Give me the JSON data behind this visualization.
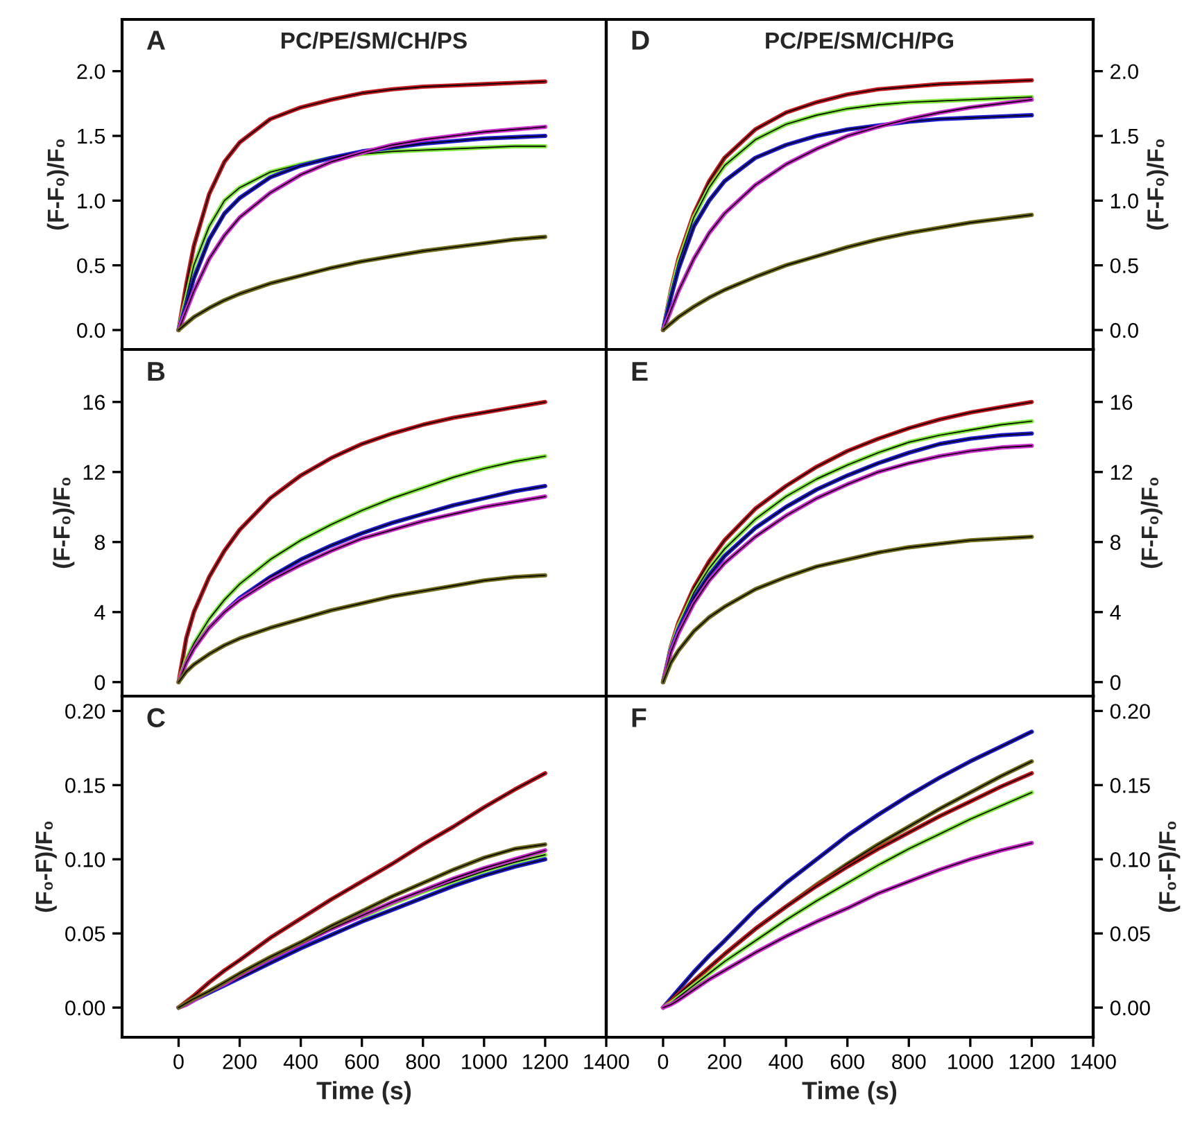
{
  "chart_data": [
    {
      "type": "line",
      "title": "PC/PE/SM/CH/PS",
      "ylabel": "(F-F₀)/F₀",
      "annotations": [
        "A"
      ],
      "tick_labels": "y",
      "x": [
        0,
        25,
        50,
        100,
        150,
        200,
        300,
        400,
        500,
        600,
        700,
        800,
        900,
        1000,
        1100,
        1200
      ],
      "xlim": [
        -185,
        1400
      ],
      "xticks": [
        0,
        200,
        400,
        600,
        800,
        1000,
        1200,
        1400
      ],
      "ylim": [
        -0.15,
        2.4
      ],
      "yticks": [
        {
          "value": 0,
          "label": "0.0"
        },
        0.5,
        {
          "value": 1,
          "label": "1.0"
        },
        1.5,
        {
          "value": 2,
          "label": "2.0"
        }
      ],
      "series": [
        {
          "color": "#c0181c",
          "values": [
            0,
            0.35,
            0.65,
            1.05,
            1.3,
            1.45,
            1.63,
            1.72,
            1.78,
            1.83,
            1.86,
            1.88,
            1.89,
            1.9,
            1.91,
            1.92
          ]
        },
        {
          "color": "#7ee83a",
          "values": [
            0,
            0.25,
            0.5,
            0.8,
            1.0,
            1.1,
            1.22,
            1.28,
            1.33,
            1.36,
            1.38,
            1.39,
            1.4,
            1.41,
            1.42,
            1.42
          ]
        },
        {
          "color": "#1c1ccc",
          "values": [
            0,
            0.2,
            0.4,
            0.7,
            0.9,
            1.02,
            1.18,
            1.27,
            1.33,
            1.38,
            1.41,
            1.44,
            1.46,
            1.48,
            1.49,
            1.5
          ]
        },
        {
          "color": "#cc2acc",
          "values": [
            0,
            0.15,
            0.3,
            0.55,
            0.73,
            0.87,
            1.06,
            1.2,
            1.3,
            1.37,
            1.43,
            1.47,
            1.5,
            1.53,
            1.55,
            1.57
          ]
        },
        {
          "color": "#6e6a18",
          "values": [
            0,
            0.05,
            0.1,
            0.17,
            0.23,
            0.28,
            0.36,
            0.42,
            0.48,
            0.53,
            0.57,
            0.61,
            0.64,
            0.67,
            0.7,
            0.72
          ]
        }
      ]
    },
    {
      "type": "line",
      "ylabel": "(F-F₀)/F₀",
      "annotations": [
        "B"
      ],
      "tick_labels": "y",
      "x": [
        0,
        25,
        50,
        100,
        150,
        200,
        300,
        400,
        500,
        600,
        700,
        800,
        900,
        1000,
        1100,
        1200
      ],
      "xlim": [
        -185,
        1400
      ],
      "xticks": [
        0,
        200,
        400,
        600,
        800,
        1000,
        1200,
        1400
      ],
      "ylim": [
        -0.8,
        19
      ],
      "yticks": [
        0,
        4,
        8,
        12,
        16
      ],
      "series": [
        {
          "color": "#c0181c",
          "values": [
            0,
            2.5,
            4,
            6,
            7.5,
            8.7,
            10.5,
            11.8,
            12.8,
            13.6,
            14.2,
            14.7,
            15.1,
            15.4,
            15.7,
            16
          ]
        },
        {
          "color": "#7ee83a",
          "values": [
            0,
            1.3,
            2.2,
            3.6,
            4.7,
            5.6,
            7,
            8.1,
            9,
            9.8,
            10.5,
            11.1,
            11.7,
            12.2,
            12.6,
            12.9
          ]
        },
        {
          "color": "#1c1ccc",
          "values": [
            null,
            null,
            null,
            3.1,
            4,
            4.8,
            6,
            7,
            7.8,
            8.5,
            9.1,
            9.6,
            10.1,
            10.5,
            10.9,
            11.2
          ]
        },
        {
          "color": "#cc2acc",
          "values": [
            0,
            1.1,
            1.9,
            3.1,
            4,
            4.7,
            5.8,
            6.7,
            7.5,
            8.2,
            8.7,
            9.2,
            9.6,
            10,
            10.3,
            10.6
          ]
        },
        {
          "color": "#6e6a18",
          "values": [
            0,
            0.6,
            1.0,
            1.6,
            2.1,
            2.5,
            3.1,
            3.6,
            4.1,
            4.5,
            4.9,
            5.2,
            5.5,
            5.8,
            6,
            6.1
          ]
        }
      ]
    },
    {
      "type": "line",
      "xlabel": "Time (s)",
      "ylabel": "(F₀-F)/F₀",
      "annotations": [
        "C"
      ],
      "x": [
        0,
        25,
        50,
        100,
        150,
        200,
        300,
        400,
        500,
        600,
        700,
        800,
        900,
        1000,
        1100,
        1200
      ],
      "xlim": [
        -185,
        1400
      ],
      "xticks": [
        0,
        200,
        400,
        600,
        800,
        1000,
        1200,
        1400
      ],
      "ylim": [
        -0.02,
        0.21
      ],
      "yticks": [
        {
          "value": 0,
          "label": "0.00"
        },
        0.05,
        {
          "value": 0.1,
          "label": "0.10"
        },
        0.15,
        {
          "value": 0.2,
          "label": "0.20"
        }
      ],
      "series": [
        {
          "color": "#c0181c",
          "values": [
            0,
            0.004,
            0.008,
            0.017,
            0.025,
            0.032,
            0.047,
            0.06,
            0.073,
            0.085,
            0.097,
            0.11,
            0.122,
            0.135,
            0.147,
            0.158
          ]
        },
        {
          "color": "#7ee83a",
          "values": [
            null,
            null,
            null,
            null,
            null,
            null,
            null,
            null,
            null,
            0.061,
            0.07,
            0.078,
            0.085,
            0.092,
            0.098,
            0.103
          ]
        },
        {
          "color": "#1c1ccc",
          "values": [
            0,
            0.002,
            0.005,
            0.01,
            0.015,
            0.02,
            0.03,
            0.04,
            0.049,
            0.058,
            0.066,
            0.074,
            0.082,
            0.089,
            0.095,
            0.1
          ]
        },
        {
          "color": "#cc2acc",
          "values": [
            0,
            0.002,
            0.005,
            0.011,
            0.016,
            0.022,
            0.033,
            0.043,
            0.053,
            0.062,
            0.071,
            0.079,
            0.087,
            0.094,
            0.1,
            0.106
          ]
        },
        {
          "color": "#6e6a18",
          "values": [
            0,
            0.003,
            0.006,
            0.011,
            0.017,
            0.023,
            0.034,
            0.044,
            0.055,
            0.065,
            0.075,
            0.084,
            0.093,
            0.101,
            0.107,
            0.11
          ]
        }
      ]
    },
    {
      "type": "line",
      "title": "PC/PE/SM/CH/PG",
      "y2label": "(F-F₀)/F₀",
      "annotations": [
        "D"
      ],
      "tick_labels": "y",
      "x": [
        0,
        25,
        50,
        100,
        150,
        200,
        300,
        400,
        500,
        600,
        700,
        800,
        900,
        1000,
        1100,
        1200
      ],
      "xlim": [
        -185,
        1400
      ],
      "xticks": [
        0,
        200,
        400,
        600,
        800,
        1000,
        1200,
        1400
      ],
      "y2lim": [
        -0.15,
        2.4
      ],
      "y2ticks": [
        {
          "value": 0,
          "label": "0.0"
        },
        0.5,
        {
          "value": 1,
          "label": "1.0"
        },
        1.5,
        {
          "value": 2,
          "label": "2.0"
        }
      ],
      "series": [
        {
          "color": "#c0181c",
          "axis": "y2",
          "values": [
            0,
            0.3,
            0.55,
            0.9,
            1.15,
            1.33,
            1.55,
            1.68,
            1.76,
            1.82,
            1.86,
            1.88,
            1.9,
            1.91,
            1.92,
            1.93
          ]
        },
        {
          "color": "#7ee83a",
          "axis": "y2",
          "values": [
            0,
            0.28,
            0.52,
            0.87,
            1.1,
            1.27,
            1.47,
            1.59,
            1.66,
            1.71,
            1.74,
            1.76,
            1.77,
            1.78,
            1.79,
            1.8
          ]
        },
        {
          "color": "#1c1ccc",
          "axis": "y2",
          "values": [
            0,
            0.25,
            0.47,
            0.8,
            1.0,
            1.15,
            1.33,
            1.43,
            1.5,
            1.55,
            1.58,
            1.61,
            1.63,
            1.64,
            1.65,
            1.66
          ]
        },
        {
          "color": "#cc2acc",
          "axis": "y2",
          "values": [
            0,
            0.15,
            0.3,
            0.55,
            0.75,
            0.9,
            1.12,
            1.28,
            1.4,
            1.5,
            1.57,
            1.63,
            1.68,
            1.72,
            1.75,
            1.78
          ]
        },
        {
          "color": "#6e6a18",
          "axis": "y2",
          "values": [
            0,
            0.05,
            0.1,
            0.18,
            0.25,
            0.31,
            0.41,
            0.5,
            0.57,
            0.64,
            0.7,
            0.75,
            0.79,
            0.83,
            0.86,
            0.89
          ]
        }
      ]
    },
    {
      "type": "line",
      "y2label": "(F-F₀)/F₀",
      "annotations": [
        "E"
      ],
      "tick_labels": "y",
      "x": [
        0,
        25,
        50,
        100,
        150,
        200,
        300,
        400,
        500,
        600,
        700,
        800,
        900,
        1000,
        1100,
        1200
      ],
      "xlim": [
        -185,
        1400
      ],
      "xticks": [
        0,
        200,
        400,
        600,
        800,
        1000,
        1200,
        1400
      ],
      "y2lim": [
        -0.8,
        19
      ],
      "y2ticks": [
        0,
        4,
        8,
        12,
        16
      ],
      "series": [
        {
          "color": "#c0181c",
          "axis": "y2",
          "values": [
            0,
            2,
            3.4,
            5.4,
            6.9,
            8.1,
            9.9,
            11.2,
            12.3,
            13.2,
            13.9,
            14.5,
            15,
            15.4,
            15.7,
            16
          ]
        },
        {
          "color": "#7ee83a",
          "axis": "y2",
          "values": [
            0,
            1.9,
            3.2,
            5.1,
            6.5,
            7.6,
            9.3,
            10.6,
            11.6,
            12.4,
            13.1,
            13.7,
            14.1,
            14.4,
            14.7,
            14.9
          ]
        },
        {
          "color": "#1c1ccc",
          "axis": "y2",
          "values": [
            0,
            1.8,
            3,
            4.8,
            6.1,
            7.2,
            8.8,
            10,
            11,
            11.8,
            12.5,
            13.1,
            13.6,
            13.9,
            14.1,
            14.2
          ]
        },
        {
          "color": "#cc2acc",
          "axis": "y2",
          "values": [
            0,
            1.7,
            2.8,
            4.5,
            5.8,
            6.8,
            8.3,
            9.5,
            10.5,
            11.3,
            12,
            12.5,
            12.9,
            13.2,
            13.4,
            13.5
          ]
        },
        {
          "color": "#6e6a18",
          "axis": "y2",
          "values": [
            0,
            1.1,
            1.8,
            2.9,
            3.7,
            4.3,
            5.3,
            6,
            6.6,
            7,
            7.4,
            7.7,
            7.9,
            8.1,
            8.2,
            8.3
          ]
        }
      ]
    },
    {
      "type": "line",
      "xlabel": "Time (s)",
      "y2label": "(F₀-F)/F₀",
      "annotations": [
        "F"
      ],
      "x": [
        0,
        25,
        50,
        100,
        150,
        200,
        300,
        400,
        500,
        600,
        700,
        800,
        900,
        1000,
        1100,
        1200
      ],
      "xlim": [
        -185,
        1400
      ],
      "xticks": [
        0,
        200,
        400,
        600,
        800,
        1000,
        1200,
        1400
      ],
      "y2lim": [
        -0.02,
        0.21
      ],
      "y2ticks": [
        {
          "value": 0,
          "label": "0.00"
        },
        0.05,
        {
          "value": 0.1,
          "label": "0.10"
        },
        0.15,
        {
          "value": 0.2,
          "label": "0.20"
        }
      ],
      "series": [
        {
          "color": "#1c1ccc",
          "axis": "y2",
          "values": [
            0,
            0.006,
            0.012,
            0.024,
            0.035,
            0.045,
            0.066,
            0.084,
            0.1,
            0.116,
            0.13,
            0.143,
            0.155,
            0.166,
            0.176,
            0.186
          ]
        },
        {
          "color": "#6e6a18",
          "axis": "y2",
          "values": [
            0,
            0.004,
            0.009,
            0.018,
            0.027,
            0.036,
            0.053,
            0.068,
            0.083,
            0.097,
            0.11,
            0.122,
            0.134,
            0.145,
            0.156,
            0.166
          ]
        },
        {
          "color": "#c0181c",
          "axis": "y2",
          "values": [
            0,
            0.004,
            0.009,
            0.018,
            0.027,
            0.036,
            0.053,
            0.068,
            0.082,
            0.095,
            0.107,
            0.118,
            0.129,
            0.139,
            0.149,
            0.158
          ]
        },
        {
          "color": "#7ee83a",
          "axis": "y2",
          "values": [
            0,
            0.003,
            0.007,
            0.015,
            0.023,
            0.031,
            0.045,
            0.059,
            0.072,
            0.084,
            0.096,
            0.107,
            0.117,
            0.127,
            0.136,
            0.145
          ]
        },
        {
          "color": "#cc2acc",
          "axis": "y2",
          "values": [
            0,
            0.002,
            0.005,
            0.012,
            0.019,
            0.025,
            0.037,
            0.048,
            0.058,
            0.067,
            0.077,
            0.085,
            0.093,
            0.1,
            0.106,
            0.111
          ]
        }
      ]
    }
  ]
}
